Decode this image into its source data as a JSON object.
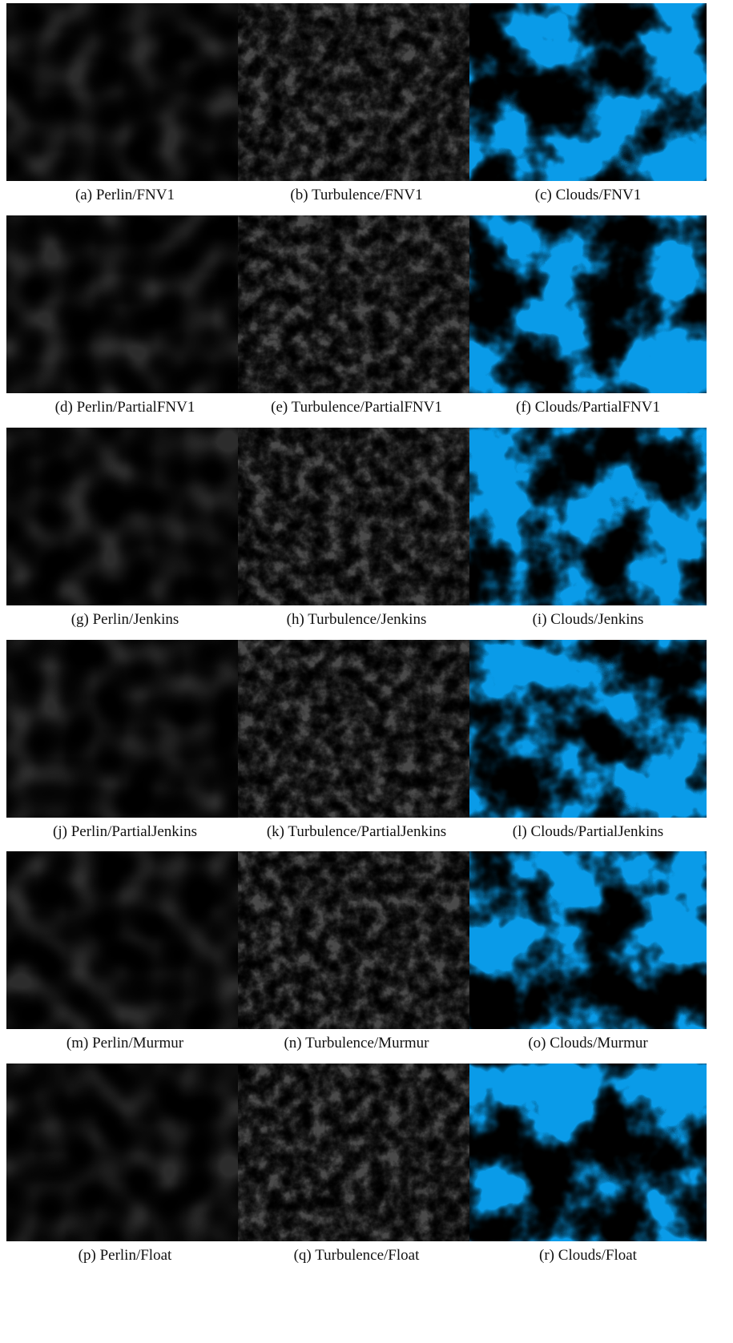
{
  "figure": {
    "panels": [
      {
        "label": "(a)",
        "caption": "Perlin/FNV1",
        "noise": "perlin",
        "hash": "FNV1"
      },
      {
        "label": "(b)",
        "caption": "Turbulence/FNV1",
        "noise": "turbulence",
        "hash": "FNV1"
      },
      {
        "label": "(c)",
        "caption": "Clouds/FNV1",
        "noise": "clouds",
        "hash": "FNV1"
      },
      {
        "label": "(d)",
        "caption": "Perlin/PartialFNV1",
        "noise": "perlin",
        "hash": "PartialFNV1"
      },
      {
        "label": "(e)",
        "caption": "Turbulence/PartialFNV1",
        "noise": "turbulence",
        "hash": "PartialFNV1"
      },
      {
        "label": "(f)",
        "caption": "Clouds/PartialFNV1",
        "noise": "clouds",
        "hash": "PartialFNV1"
      },
      {
        "label": "(g)",
        "caption": "Perlin/Jenkins",
        "noise": "perlin",
        "hash": "Jenkins"
      },
      {
        "label": "(h)",
        "caption": "Turbulence/Jenkins",
        "noise": "turbulence",
        "hash": "Jenkins"
      },
      {
        "label": "(i)",
        "caption": "Clouds/Jenkins",
        "noise": "clouds",
        "hash": "Jenkins"
      },
      {
        "label": "(j)",
        "caption": "Perlin/PartialJenkins",
        "noise": "perlin",
        "hash": "PartialJenkins"
      },
      {
        "label": "(k)",
        "caption": "Turbulence/PartialJenkins",
        "noise": "turbulence",
        "hash": "PartialJenkins"
      },
      {
        "label": "(l)",
        "caption": "Clouds/PartialJenkins",
        "noise": "clouds",
        "hash": "PartialJenkins"
      },
      {
        "label": "(m)",
        "caption": "Perlin/Murmur",
        "noise": "perlin",
        "hash": "Murmur"
      },
      {
        "label": "(n)",
        "caption": "Turbulence/Murmur",
        "noise": "turbulence",
        "hash": "Murmur"
      },
      {
        "label": "(o)",
        "caption": "Clouds/Murmur",
        "noise": "clouds",
        "hash": "Murmur"
      },
      {
        "label": "(p)",
        "caption": "Perlin/Float",
        "noise": "perlin",
        "hash": "Float"
      },
      {
        "label": "(q)",
        "caption": "Turbulence/Float",
        "noise": "turbulence",
        "hash": "Float"
      },
      {
        "label": "(r)",
        "caption": "Clouds/Float",
        "noise": "clouds",
        "hash": "Float"
      }
    ],
    "colors": {
      "cloud_sky": "#0a9be8",
      "cloud_white": "#ffffff",
      "caption_text": "#111111"
    }
  }
}
